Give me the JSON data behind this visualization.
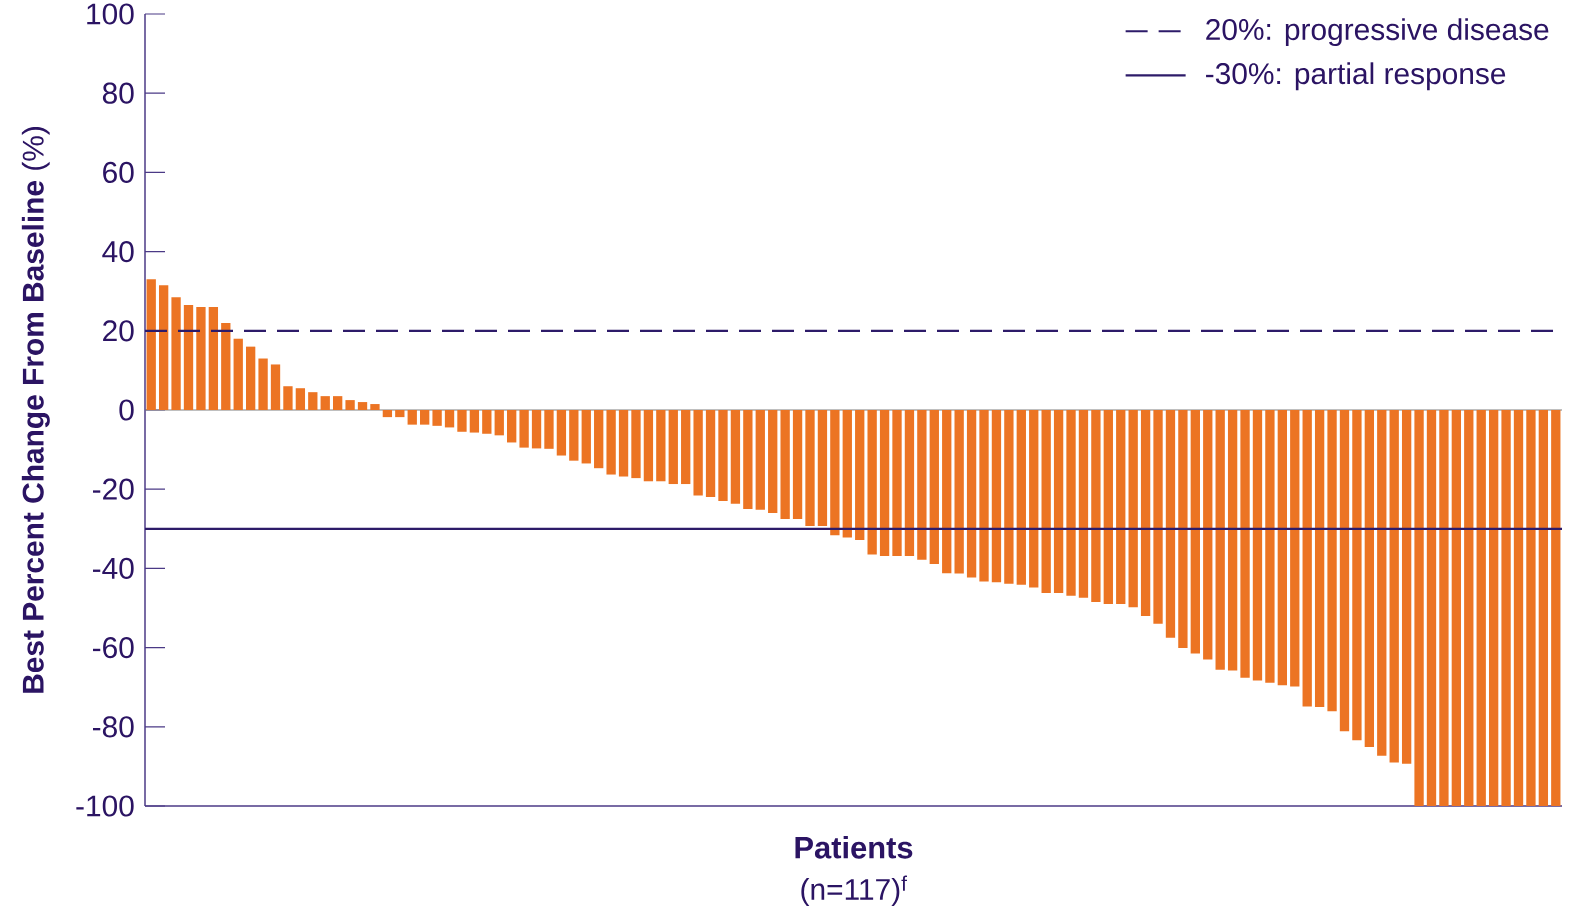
{
  "chart_data": {
    "type": "bar",
    "ylabel": "**Best Percent Change From Baseline** (%)",
    "xlabel": "Patients",
    "annotations": [
      "(n=117)$^{f}$"
    ],
    "categories": [
      null,
      null,
      null,
      null,
      null,
      null,
      null,
      null,
      null,
      null,
      null,
      null,
      null,
      null,
      null,
      null,
      null,
      null,
      null,
      null,
      null,
      null,
      null,
      null,
      null,
      null,
      null,
      null,
      null,
      null,
      null,
      null,
      null,
      null,
      null,
      null,
      null,
      null,
      null,
      null,
      null,
      null,
      null,
      null,
      null,
      null,
      null,
      null,
      null,
      null,
      null,
      null,
      null,
      null,
      null,
      null,
      null,
      null,
      null,
      null,
      null,
      null,
      null,
      null,
      null,
      null,
      null,
      null,
      null,
      null,
      null,
      null,
      null,
      null,
      null,
      null,
      null,
      null,
      null,
      null,
      null,
      null,
      null,
      null,
      null,
      null,
      null,
      null,
      null,
      null,
      null,
      null,
      null,
      null,
      null,
      null,
      null,
      null,
      null,
      null,
      null,
      null,
      null,
      null,
      null,
      null,
      null,
      null,
      null,
      null,
      null,
      null,
      null,
      null
    ],
    "values": [
      33,
      31.5,
      28.5,
      26.5,
      26,
      26,
      22,
      18,
      16,
      13,
      11.5,
      6,
      5.5,
      4.5,
      3.5,
      3.5,
      2.5,
      2,
      1.5,
      -1.8,
      -1.8,
      -3.7,
      -3.7,
      -4,
      -4.4,
      -5.5,
      -5.7,
      -6,
      -6.4,
      -8.2,
      -9.5,
      -9.7,
      -9.8,
      -11.5,
      -12.8,
      -13.5,
      -14.7,
      -16.3,
      -16.8,
      -17.2,
      -18,
      -18,
      -18.7,
      -18.7,
      -21.6,
      -22,
      -23,
      -23.7,
      -25,
      -25.2,
      -26,
      -27.5,
      -27.5,
      -29.3,
      -29.3,
      -31.6,
      -32.2,
      -32.8,
      -36.5,
      -36.9,
      -36.9,
      -36.9,
      -37.8,
      -38.9,
      -41.2,
      -41.3,
      -42.3,
      -43.3,
      -43.5,
      -43.9,
      -44.1,
      -44.8,
      -46.2,
      -46.2,
      -46.9,
      -47.4,
      -48.5,
      -49,
      -49,
      -49.8,
      -52,
      -54,
      -57.5,
      -60.1,
      -61.5,
      -63,
      -65.6,
      -65.8,
      -67.6,
      -68.3,
      -68.9,
      -69.5,
      -69.8,
      -74.9,
      -75,
      -76.1,
      -81.1,
      -83.4,
      -85.1,
      -87.3,
      -89,
      -89.3,
      -100,
      -100,
      -100,
      -100,
      -100,
      -100,
      -100,
      -100,
      -100,
      -100,
      -100,
      -100
    ],
    "color": "#ec7423",
    "ylim": [
      -100,
      100
    ],
    "yticks": [
      -100,
      -80,
      -60,
      -40,
      -20,
      0,
      20,
      40,
      60,
      80,
      100
    ],
    "tick_labels": "y",
    "ref_lines": [
      {
        "axis": "y",
        "value": 20,
        "label": "20%: progressive disease",
        "line_style": "dashed",
        "color": "#2d1b69"
      },
      {
        "axis": "y",
        "value": -30,
        "label": "-30%: partial response",
        "line_style": "solid",
        "color": "#2d1b69"
      }
    ],
    "legend": "top right"
  }
}
